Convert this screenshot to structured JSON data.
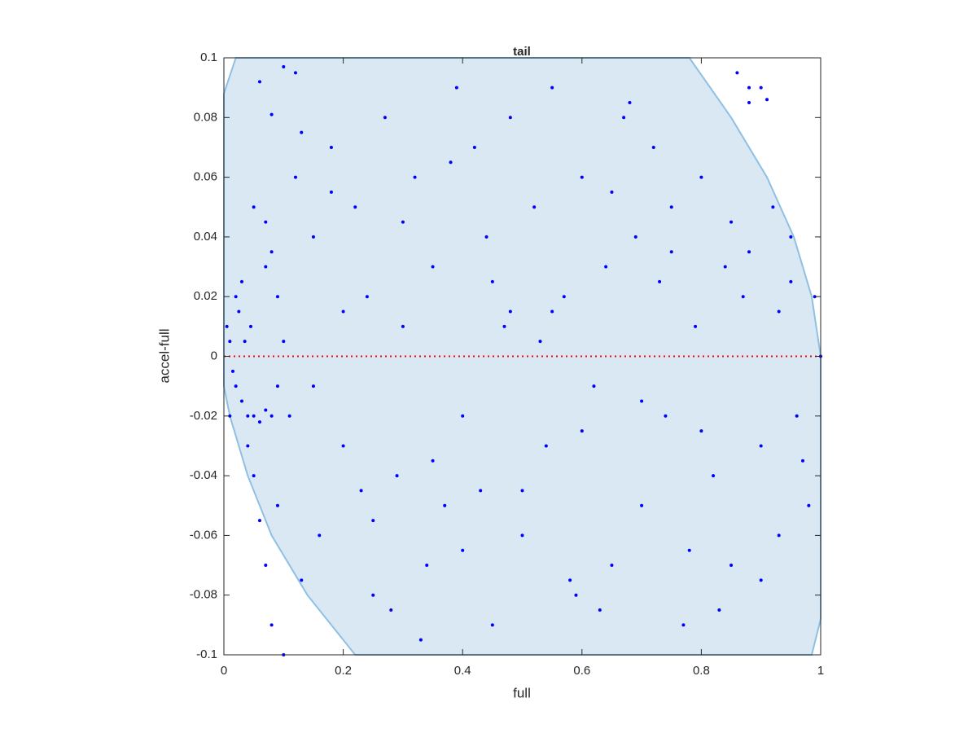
{
  "chart_data": {
    "type": "scatter",
    "title": "tail",
    "x_label": "full",
    "y_label": "accel-full",
    "xlim": [
      0,
      1
    ],
    "ylim": [
      -0.1,
      0.1
    ],
    "xticks": [
      0,
      0.2,
      0.4,
      0.6,
      0.8,
      1
    ],
    "yticks": [
      -0.1,
      -0.08,
      -0.06,
      -0.04,
      -0.02,
      0,
      0.02,
      0.04,
      0.06,
      0.08,
      0.1
    ],
    "region": {
      "color": "#d9e8f3",
      "edge_color": "#8fc0e3",
      "x": [
        0,
        0.02,
        0.78,
        0.85,
        0.91,
        0.955,
        0.985,
        1,
        1,
        0.985,
        0.22,
        0.14,
        0.08,
        0.04,
        0.01,
        0
      ],
      "y": [
        0.088,
        0.1,
        0.1,
        0.08,
        0.06,
        0.04,
        0.02,
        0,
        -0.088,
        -0.1,
        -0.1,
        -0.08,
        -0.06,
        -0.04,
        -0.02,
        -0.01
      ]
    },
    "reference_line": {
      "y": 0,
      "color": "#ff0000"
    },
    "series": [
      {
        "color": "#0000ff",
        "x": [
          0.005,
          0.01,
          0.015,
          0.02,
          0.025,
          0.03,
          0.035,
          0.04,
          0.045,
          0.05,
          0.06,
          0.07,
          0.08,
          0.09,
          0.02,
          0.03,
          0.01,
          0.04,
          0.05,
          0.06,
          0.07,
          0.08,
          0.1,
          0.06,
          0.08,
          0.1,
          0.12,
          0.13,
          0.05,
          0.07,
          0.08,
          0.09,
          0.1,
          0.11,
          0.07,
          0.09,
          0.12,
          0.15,
          0.16,
          0.18,
          0.2,
          0.22,
          0.24,
          0.25,
          0.27,
          0.29,
          0.3,
          0.32,
          0.34,
          0.35,
          0.37,
          0.39,
          0.4,
          0.42,
          0.44,
          0.45,
          0.47,
          0.48,
          0.5,
          0.52,
          0.54,
          0.55,
          0.57,
          0.59,
          0.6,
          0.62,
          0.64,
          0.65,
          0.67,
          0.69,
          0.7,
          0.72,
          0.74,
          0.75,
          0.77,
          0.79,
          0.8,
          0.82,
          0.84,
          0.85,
          0.87,
          0.88,
          0.9,
          0.92,
          0.93,
          0.95,
          0.96,
          0.98,
          0.99,
          1,
          0.86,
          0.88,
          0.9,
          0.91,
          0.15,
          0.2,
          0.25,
          0.3,
          0.35,
          0.4,
          0.45,
          0.5,
          0.55,
          0.6,
          0.65,
          0.7,
          0.75,
          0.8,
          0.85,
          0.9,
          0.95,
          0.18,
          0.28,
          0.38,
          0.48,
          0.58,
          0.68,
          0.78,
          0.88,
          0.97,
          0.33,
          0.43,
          0.53,
          0.63,
          0.73,
          0.83,
          0.93,
          0.23,
          0.13
        ],
        "y": [
          0.01,
          0.005,
          -0.005,
          -0.01,
          0.015,
          -0.015,
          0.005,
          -0.02,
          0.01,
          -0.02,
          -0.022,
          -0.018,
          -0.02,
          -0.01,
          0.02,
          0.025,
          -0.02,
          -0.03,
          -0.04,
          -0.055,
          -0.07,
          -0.09,
          -0.1,
          0.092,
          0.081,
          0.097,
          0.095,
          0.075,
          0.05,
          0.045,
          0.035,
          0.02,
          0.005,
          -0.02,
          0.03,
          -0.05,
          0.06,
          0.04,
          -0.06,
          0.07,
          -0.03,
          0.05,
          0.02,
          -0.08,
          0.08,
          -0.04,
          0.01,
          0.06,
          -0.07,
          0.03,
          -0.05,
          0.09,
          -0.02,
          0.07,
          0.04,
          -0.09,
          0.01,
          0.08,
          -0.06,
          0.05,
          -0.03,
          0.09,
          0.02,
          -0.08,
          0.06,
          -0.01,
          0.03,
          -0.07,
          0.08,
          0.04,
          -0.05,
          0.07,
          -0.02,
          0.05,
          -0.09,
          0.01,
          0.06,
          -0.04,
          0.03,
          -0.07,
          0.02,
          0.09,
          -0.03,
          0.05,
          -0.06,
          0.04,
          -0.02,
          -0.05,
          0.02,
          0.0,
          0.095,
          0.085,
          0.09,
          0.086,
          -0.01,
          0.015,
          -0.055,
          0.045,
          -0.035,
          -0.065,
          0.025,
          -0.045,
          0.015,
          -0.025,
          0.055,
          -0.015,
          0.035,
          -0.025,
          0.045,
          -0.075,
          0.025,
          0.055,
          -0.085,
          0.065,
          0.015,
          -0.075,
          0.085,
          -0.065,
          0.035,
          -0.035,
          -0.095,
          -0.045,
          0.005,
          -0.085,
          0.025,
          -0.085,
          0.015,
          -0.045,
          -0.075
        ]
      }
    ]
  }
}
